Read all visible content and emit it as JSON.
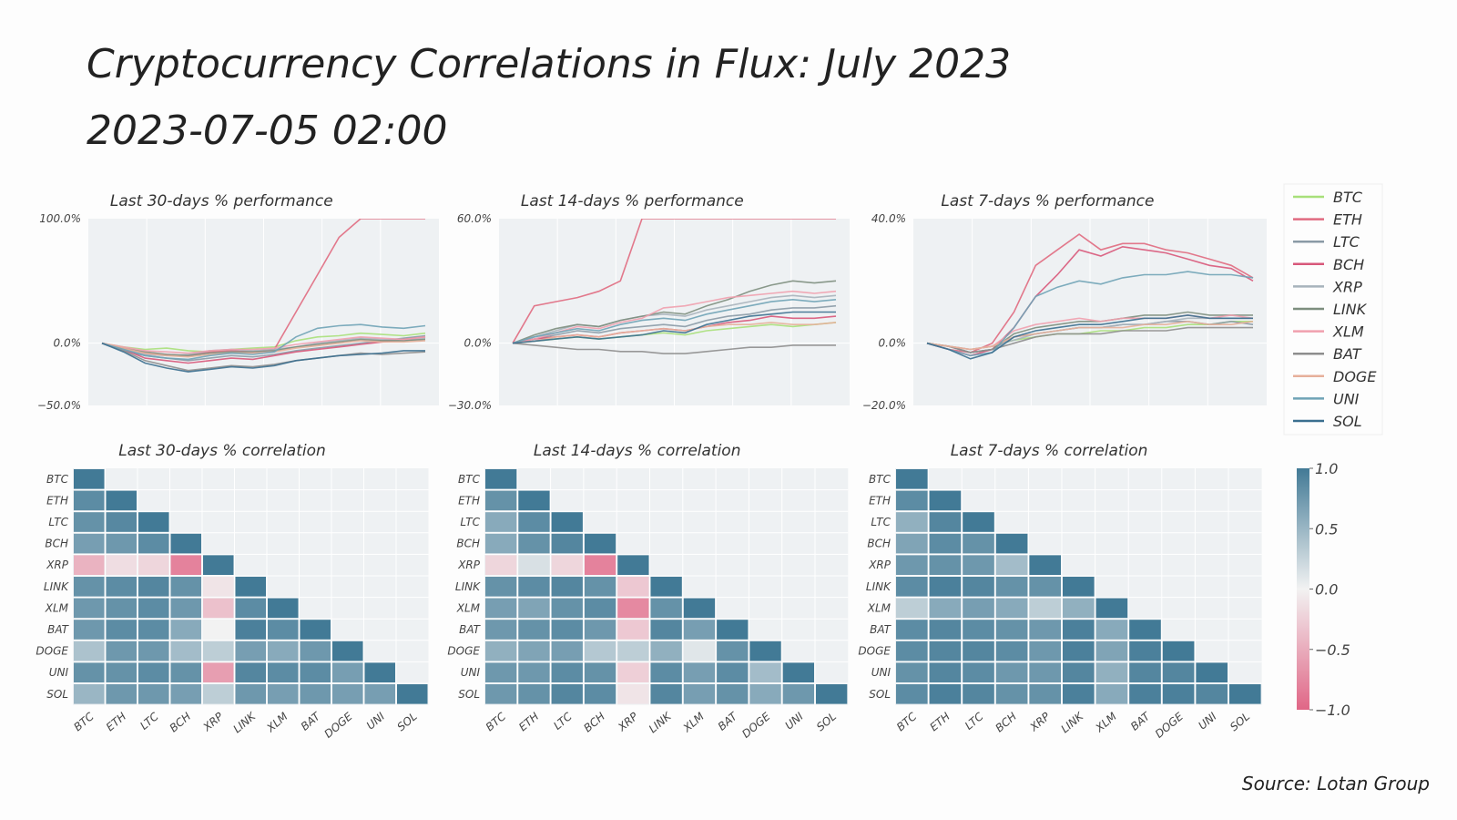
{
  "header": {
    "title": "Cryptocurrency Correlations in Flux: July 2023",
    "timestamp": "2023-07-05 02:00"
  },
  "footer": {
    "source": "Source: Lotan Group"
  },
  "colors": {
    "BTC": "#a8e07a",
    "ETH": "#e06a80",
    "LTC": "#8a9aa6",
    "BCH": "#d8587a",
    "XRP": "#a7b3bb",
    "LINK": "#7d8e7e",
    "XLM": "#f0a0ae",
    "BAT": "#8e8e8e",
    "DOGE": "#e6b09a",
    "UNI": "#6fa3b6",
    "SOL": "#3b6f8f"
  },
  "chart_data": [
    {
      "type": "line",
      "title": "Last 30-days % performance",
      "ylim": [
        -50,
        100
      ],
      "yticks": [
        "100.0%",
        "0.0%",
        "−50.0%"
      ],
      "series": [
        {
          "name": "BTC",
          "values": [
            0,
            -3,
            -5,
            -4,
            -6,
            -7,
            -5,
            -4,
            -3,
            2,
            5,
            6,
            8,
            7,
            6,
            8
          ]
        },
        {
          "name": "ETH",
          "values": [
            0,
            -4,
            -8,
            -9,
            -10,
            -7,
            -6,
            -7,
            -5,
            25,
            55,
            85,
            100,
            100,
            100,
            100
          ]
        },
        {
          "name": "LTC",
          "values": [
            0,
            -6,
            -10,
            -12,
            -14,
            -12,
            -10,
            -11,
            -9,
            -6,
            -4,
            -2,
            0,
            2,
            4,
            6
          ]
        },
        {
          "name": "BCH",
          "values": [
            0,
            -5,
            -12,
            -14,
            -16,
            -14,
            -12,
            -13,
            -10,
            -7,
            -5,
            -3,
            -1,
            1,
            3,
            5
          ]
        },
        {
          "name": "XRP",
          "values": [
            0,
            -5,
            -9,
            -10,
            -9,
            -6,
            -5,
            -6,
            -5,
            -3,
            0,
            2,
            4,
            3,
            2,
            4
          ]
        },
        {
          "name": "LINK",
          "values": [
            0,
            -4,
            -7,
            -9,
            -10,
            -8,
            -7,
            -7,
            -6,
            -3,
            -1,
            1,
            3,
            2,
            2,
            3
          ]
        },
        {
          "name": "XLM",
          "values": [
            0,
            -3,
            -6,
            -7,
            -8,
            -6,
            -5,
            -5,
            -4,
            -1,
            1,
            3,
            5,
            4,
            3,
            5
          ]
        },
        {
          "name": "BAT",
          "values": [
            0,
            -6,
            -14,
            -18,
            -22,
            -20,
            -18,
            -19,
            -17,
            -14,
            -12,
            -10,
            -8,
            -9,
            -8,
            -7
          ]
        },
        {
          "name": "DOGE",
          "values": [
            0,
            -4,
            -8,
            -10,
            -11,
            -9,
            -8,
            -8,
            -7,
            -4,
            -2,
            0,
            2,
            1,
            1,
            2
          ]
        },
        {
          "name": "UNI",
          "values": [
            0,
            -5,
            -10,
            -12,
            -13,
            -10,
            -8,
            -9,
            -7,
            5,
            12,
            14,
            15,
            13,
            12,
            14
          ]
        },
        {
          "name": "SOL",
          "values": [
            0,
            -7,
            -16,
            -20,
            -23,
            -21,
            -19,
            -20,
            -18,
            -14,
            -12,
            -10,
            -9,
            -8,
            -6,
            -6
          ]
        }
      ]
    },
    {
      "type": "line",
      "title": "Last 14-days % performance",
      "ylim": [
        -30,
        60
      ],
      "yticks": [
        "60.0%",
        "0.0%",
        "−30.0%"
      ],
      "series": [
        {
          "name": "BTC",
          "values": [
            0,
            1,
            2,
            3,
            2,
            3,
            4,
            5,
            4,
            6,
            7,
            8,
            9,
            8,
            9,
            10
          ]
        },
        {
          "name": "ETH",
          "values": [
            0,
            18,
            20,
            22,
            25,
            30,
            60,
            60,
            60,
            60,
            60,
            60,
            60,
            60,
            60,
            60
          ]
        },
        {
          "name": "LTC",
          "values": [
            0,
            2,
            4,
            6,
            5,
            7,
            8,
            9,
            8,
            11,
            13,
            14,
            16,
            17,
            17,
            18
          ]
        },
        {
          "name": "BCH",
          "values": [
            0,
            2,
            3,
            4,
            3,
            5,
            6,
            7,
            6,
            8,
            10,
            11,
            13,
            12,
            12,
            13
          ]
        },
        {
          "name": "XRP",
          "values": [
            0,
            3,
            6,
            9,
            8,
            11,
            13,
            14,
            13,
            16,
            18,
            20,
            22,
            23,
            22,
            23
          ]
        },
        {
          "name": "LINK",
          "values": [
            0,
            4,
            7,
            9,
            8,
            11,
            13,
            15,
            14,
            18,
            21,
            25,
            28,
            30,
            29,
            30
          ]
        },
        {
          "name": "XLM",
          "values": [
            0,
            2,
            5,
            8,
            7,
            10,
            12,
            17,
            18,
            20,
            22,
            23,
            24,
            25,
            24,
            25
          ]
        },
        {
          "name": "BAT",
          "values": [
            0,
            -1,
            -2,
            -3,
            -3,
            -4,
            -4,
            -5,
            -5,
            -4,
            -3,
            -2,
            -2,
            -1,
            -1,
            -1
          ]
        },
        {
          "name": "DOGE",
          "values": [
            0,
            1,
            3,
            4,
            3,
            5,
            6,
            7,
            6,
            8,
            9,
            9,
            10,
            9,
            9,
            10
          ]
        },
        {
          "name": "UNI",
          "values": [
            0,
            3,
            5,
            7,
            6,
            9,
            11,
            12,
            11,
            14,
            16,
            18,
            20,
            21,
            20,
            21
          ]
        },
        {
          "name": "SOL",
          "values": [
            0,
            1,
            2,
            3,
            2,
            3,
            4,
            6,
            5,
            9,
            11,
            13,
            14,
            15,
            15,
            15
          ]
        }
      ]
    },
    {
      "type": "line",
      "title": "Last 7-days % performance",
      "ylim": [
        -20,
        40
      ],
      "yticks": [
        "40.0%",
        "0.0%",
        "−20.0%"
      ],
      "series": [
        {
          "name": "BTC",
          "values": [
            0,
            -1,
            -2,
            -1,
            1,
            2,
            3,
            3,
            4,
            4,
            5,
            5,
            6,
            6,
            7,
            7
          ]
        },
        {
          "name": "ETH",
          "values": [
            0,
            -2,
            -3,
            0,
            10,
            25,
            30,
            35,
            30,
            32,
            32,
            30,
            29,
            27,
            25,
            21
          ]
        },
        {
          "name": "LTC",
          "values": [
            0,
            -1,
            -3,
            -2,
            2,
            3,
            4,
            5,
            5,
            6,
            6,
            7,
            7,
            6,
            7,
            6
          ]
        },
        {
          "name": "BCH",
          "values": [
            0,
            -2,
            -4,
            -2,
            5,
            15,
            22,
            30,
            28,
            31,
            30,
            29,
            27,
            25,
            24,
            20
          ]
        },
        {
          "name": "XRP",
          "values": [
            0,
            -1,
            -2,
            -1,
            1,
            3,
            4,
            5,
            5,
            6,
            6,
            7,
            8,
            8,
            8,
            8
          ]
        },
        {
          "name": "LINK",
          "values": [
            0,
            -1,
            -3,
            -2,
            3,
            5,
            6,
            7,
            7,
            8,
            9,
            9,
            10,
            9,
            9,
            9
          ]
        },
        {
          "name": "XLM",
          "values": [
            0,
            -1,
            -2,
            -1,
            4,
            6,
            7,
            8,
            7,
            8,
            8,
            8,
            9,
            8,
            9,
            8
          ]
        },
        {
          "name": "BAT",
          "values": [
            0,
            -1,
            -3,
            -2,
            0,
            2,
            3,
            3,
            3,
            4,
            4,
            4,
            5,
            5,
            5,
            5
          ]
        },
        {
          "name": "DOGE",
          "values": [
            0,
            -1,
            -2,
            -1,
            2,
            3,
            4,
            5,
            5,
            5,
            6,
            6,
            7,
            6,
            6,
            7
          ]
        },
        {
          "name": "UNI",
          "values": [
            0,
            -2,
            -4,
            -3,
            5,
            15,
            18,
            20,
            19,
            21,
            22,
            22,
            23,
            22,
            22,
            21
          ]
        },
        {
          "name": "SOL",
          "values": [
            0,
            -2,
            -5,
            -3,
            2,
            4,
            5,
            6,
            6,
            7,
            8,
            8,
            9,
            8,
            8,
            8
          ]
        }
      ]
    },
    {
      "type": "heatmap",
      "title": "Last 30-days % correlation",
      "labels": [
        "BTC",
        "ETH",
        "LTC",
        "BCH",
        "XRP",
        "LINK",
        "XLM",
        "BAT",
        "DOGE",
        "UNI",
        "SOL"
      ],
      "vmin": -1,
      "vmax": 1,
      "matrix": [
        [
          1.0
        ],
        [
          0.85,
          1.0
        ],
        [
          0.8,
          0.88,
          1.0
        ],
        [
          0.7,
          0.75,
          0.85,
          1.0
        ],
        [
          -0.45,
          -0.15,
          -0.2,
          -0.8,
          1.0
        ],
        [
          0.8,
          0.85,
          0.9,
          0.8,
          -0.1,
          1.0
        ],
        [
          0.75,
          0.8,
          0.85,
          0.75,
          -0.35,
          0.85,
          1.0
        ],
        [
          0.75,
          0.85,
          0.85,
          0.6,
          0.0,
          0.95,
          0.85,
          1.0
        ],
        [
          0.4,
          0.75,
          0.75,
          0.45,
          0.3,
          0.7,
          0.6,
          0.75,
          1.0
        ],
        [
          0.8,
          0.8,
          0.85,
          0.8,
          -0.6,
          0.9,
          0.85,
          0.85,
          0.7,
          1.0
        ],
        [
          0.5,
          0.75,
          0.75,
          0.7,
          0.3,
          0.75,
          0.7,
          0.75,
          0.7,
          0.7,
          1.0
        ]
      ]
    },
    {
      "type": "heatmap",
      "title": "Last 14-days % correlation",
      "labels": [
        "BTC",
        "ETH",
        "LTC",
        "BCH",
        "XRP",
        "LINK",
        "XLM",
        "BAT",
        "DOGE",
        "UNI",
        "SOL"
      ],
      "vmin": -1,
      "vmax": 1,
      "matrix": [
        [
          1.0
        ],
        [
          0.8,
          1.0
        ],
        [
          0.6,
          0.85,
          1.0
        ],
        [
          0.6,
          0.8,
          0.9,
          1.0
        ],
        [
          -0.2,
          0.15,
          -0.2,
          -0.8,
          1.0
        ],
        [
          0.8,
          0.85,
          0.9,
          0.8,
          -0.3,
          1.0
        ],
        [
          0.7,
          0.65,
          0.8,
          0.85,
          -0.75,
          0.8,
          1.0
        ],
        [
          0.75,
          0.8,
          0.85,
          0.75,
          -0.3,
          0.9,
          0.7,
          1.0
        ],
        [
          0.55,
          0.65,
          0.7,
          0.35,
          0.3,
          0.55,
          0.1,
          0.8,
          1.0
        ],
        [
          0.75,
          0.75,
          0.85,
          0.8,
          -0.25,
          0.85,
          0.7,
          0.85,
          0.45,
          1.0
        ],
        [
          0.75,
          0.8,
          0.9,
          0.85,
          -0.1,
          0.9,
          0.7,
          0.8,
          0.6,
          0.75,
          1.0
        ]
      ]
    },
    {
      "type": "heatmap",
      "title": "Last 7-days % correlation",
      "labels": [
        "BTC",
        "ETH",
        "LTC",
        "BCH",
        "XRP",
        "LINK",
        "XLM",
        "BAT",
        "DOGE",
        "UNI",
        "SOL"
      ],
      "vmin": -1,
      "vmax": 1,
      "matrix": [
        [
          1.0
        ],
        [
          0.85,
          1.0
        ],
        [
          0.55,
          0.9,
          1.0
        ],
        [
          0.65,
          0.85,
          0.8,
          1.0
        ],
        [
          0.75,
          0.8,
          0.75,
          0.45,
          1.0
        ],
        [
          0.85,
          0.95,
          0.9,
          0.8,
          0.8,
          1.0
        ],
        [
          0.3,
          0.6,
          0.7,
          0.6,
          0.3,
          0.55,
          1.0
        ],
        [
          0.85,
          0.9,
          0.85,
          0.8,
          0.75,
          0.95,
          0.6,
          1.0
        ],
        [
          0.85,
          0.9,
          0.9,
          0.85,
          0.75,
          0.95,
          0.65,
          0.95,
          1.0
        ],
        [
          0.8,
          0.9,
          0.85,
          0.75,
          0.75,
          0.9,
          0.55,
          0.9,
          0.9,
          1.0
        ],
        [
          0.85,
          0.95,
          0.9,
          0.8,
          0.8,
          0.95,
          0.6,
          0.95,
          0.95,
          0.9,
          1.0
        ]
      ]
    }
  ],
  "colorbar": {
    "ticks": [
      "1.0",
      "0.5",
      "0.0",
      "−0.5",
      "−1.0"
    ]
  }
}
